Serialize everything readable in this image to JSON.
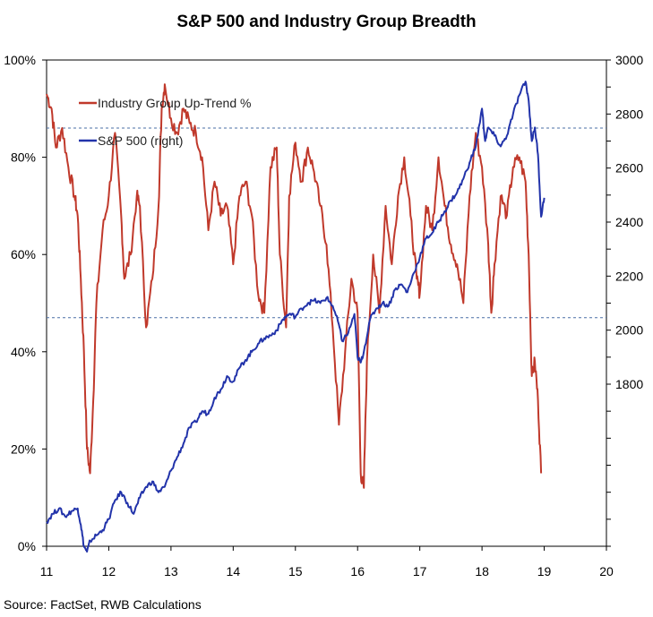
{
  "chart_data": {
    "type": "line",
    "title": "S&P 500 and Industry Group Breadth",
    "source": "Source: FactSet, RWB Calculations",
    "grid": false,
    "legend_position": "top-left",
    "x_axis": {
      "range": [
        11,
        20
      ],
      "ticks": [
        "11",
        "12",
        "13",
        "14",
        "15",
        "16",
        "17",
        "18",
        "19",
        "20"
      ]
    },
    "y_left": {
      "range": [
        0,
        100
      ],
      "ticks": [
        "0%",
        "20%",
        "40%",
        "60%",
        "80%",
        "100%"
      ],
      "tick_values": [
        0,
        20,
        40,
        60,
        80,
        100
      ]
    },
    "y_right": {
      "range": [
        1200,
        3000
      ],
      "ticks": [
        "1800",
        "2000",
        "2200",
        "2400",
        "2600",
        "2800",
        "3000"
      ],
      "tick_values": [
        1800,
        2000,
        2200,
        2400,
        2600,
        2800,
        3000
      ]
    },
    "reference_lines": [
      {
        "axis": "left",
        "value": 86,
        "style": "dashed",
        "color": "#4a6fa5"
      },
      {
        "axis": "left",
        "value": 47,
        "style": "dashed",
        "color": "#4a6fa5"
      }
    ],
    "series": [
      {
        "name": "Industry Group Up-Trend %",
        "axis": "left",
        "color": "#c0392b",
        "x": [
          11.0,
          11.08,
          11.15,
          11.25,
          11.35,
          11.45,
          11.5,
          11.55,
          11.6,
          11.65,
          11.7,
          11.75,
          11.8,
          11.9,
          12.0,
          12.1,
          12.2,
          12.25,
          12.35,
          12.45,
          12.5,
          12.6,
          12.7,
          12.8,
          12.85,
          12.9,
          13.0,
          13.1,
          13.2,
          13.3,
          13.4,
          13.5,
          13.6,
          13.7,
          13.8,
          13.9,
          14.0,
          14.1,
          14.2,
          14.3,
          14.4,
          14.5,
          14.6,
          14.7,
          14.75,
          14.85,
          14.9,
          15.0,
          15.1,
          15.2,
          15.3,
          15.4,
          15.5,
          15.6,
          15.7,
          15.8,
          15.9,
          16.0,
          16.05,
          16.1,
          16.15,
          16.25,
          16.35,
          16.45,
          16.55,
          16.65,
          16.75,
          16.85,
          16.95,
          17.0,
          17.1,
          17.2,
          17.3,
          17.4,
          17.5,
          17.6,
          17.7,
          17.8,
          17.9,
          18.0,
          18.1,
          18.15,
          18.2,
          18.3,
          18.4,
          18.5,
          18.6,
          18.7,
          18.75,
          18.8,
          18.85,
          18.9,
          18.95
        ],
        "values": [
          93,
          90,
          82,
          86,
          78,
          72,
          68,
          55,
          40,
          20,
          15,
          30,
          50,
          65,
          72,
          85,
          68,
          55,
          60,
          72,
          70,
          45,
          55,
          70,
          90,
          95,
          88,
          85,
          90,
          87,
          85,
          80,
          65,
          75,
          68,
          70,
          58,
          72,
          75,
          68,
          52,
          48,
          78,
          82,
          60,
          45,
          72,
          83,
          75,
          82,
          77,
          70,
          62,
          45,
          25,
          40,
          55,
          48,
          15,
          12,
          38,
          60,
          48,
          70,
          58,
          72,
          80,
          68,
          55,
          52,
          70,
          65,
          80,
          70,
          62,
          58,
          50,
          72,
          85,
          78,
          62,
          48,
          58,
          72,
          68,
          78,
          80,
          75,
          60,
          35,
          38,
          30,
          15
        ]
      },
      {
        "name": "S&P 500 (right)",
        "axis": "right",
        "color": "#2233aa",
        "x": [
          11.0,
          11.1,
          11.2,
          11.3,
          11.4,
          11.5,
          11.55,
          11.6,
          11.65,
          11.7,
          11.8,
          11.9,
          12.0,
          12.1,
          12.2,
          12.3,
          12.4,
          12.5,
          12.6,
          12.7,
          12.8,
          12.9,
          13.0,
          13.1,
          13.2,
          13.3,
          13.4,
          13.5,
          13.6,
          13.7,
          13.8,
          13.9,
          14.0,
          14.1,
          14.2,
          14.3,
          14.4,
          14.5,
          14.6,
          14.7,
          14.8,
          14.9,
          15.0,
          15.1,
          15.2,
          15.3,
          15.4,
          15.5,
          15.6,
          15.7,
          15.75,
          15.85,
          15.95,
          16.0,
          16.05,
          16.1,
          16.2,
          16.3,
          16.4,
          16.5,
          16.6,
          16.7,
          16.8,
          16.9,
          17.0,
          17.1,
          17.2,
          17.3,
          17.4,
          17.5,
          17.6,
          17.7,
          17.8,
          17.9,
          18.0,
          18.05,
          18.1,
          18.2,
          18.3,
          18.4,
          18.5,
          18.6,
          18.7,
          18.75,
          18.8,
          18.85,
          18.9,
          18.95,
          19.0
        ],
        "values": [
          1290,
          1320,
          1340,
          1310,
          1330,
          1340,
          1280,
          1200,
          1180,
          1220,
          1240,
          1260,
          1300,
          1370,
          1400,
          1360,
          1320,
          1380,
          1420,
          1440,
          1400,
          1420,
          1480,
          1530,
          1580,
          1640,
          1660,
          1700,
          1690,
          1750,
          1780,
          1830,
          1810,
          1860,
          1890,
          1920,
          1950,
          1970,
          1980,
          2000,
          2040,
          2060,
          2050,
          2080,
          2100,
          2110,
          2100,
          2120,
          2090,
          2020,
          1960,
          1990,
          2060,
          1900,
          1880,
          1920,
          2040,
          2080,
          2100,
          2090,
          2150,
          2170,
          2140,
          2210,
          2270,
          2340,
          2360,
          2400,
          2440,
          2480,
          2510,
          2560,
          2620,
          2680,
          2820,
          2700,
          2750,
          2720,
          2680,
          2720,
          2800,
          2870,
          2920,
          2850,
          2700,
          2750,
          2650,
          2420,
          2490
        ]
      }
    ]
  }
}
